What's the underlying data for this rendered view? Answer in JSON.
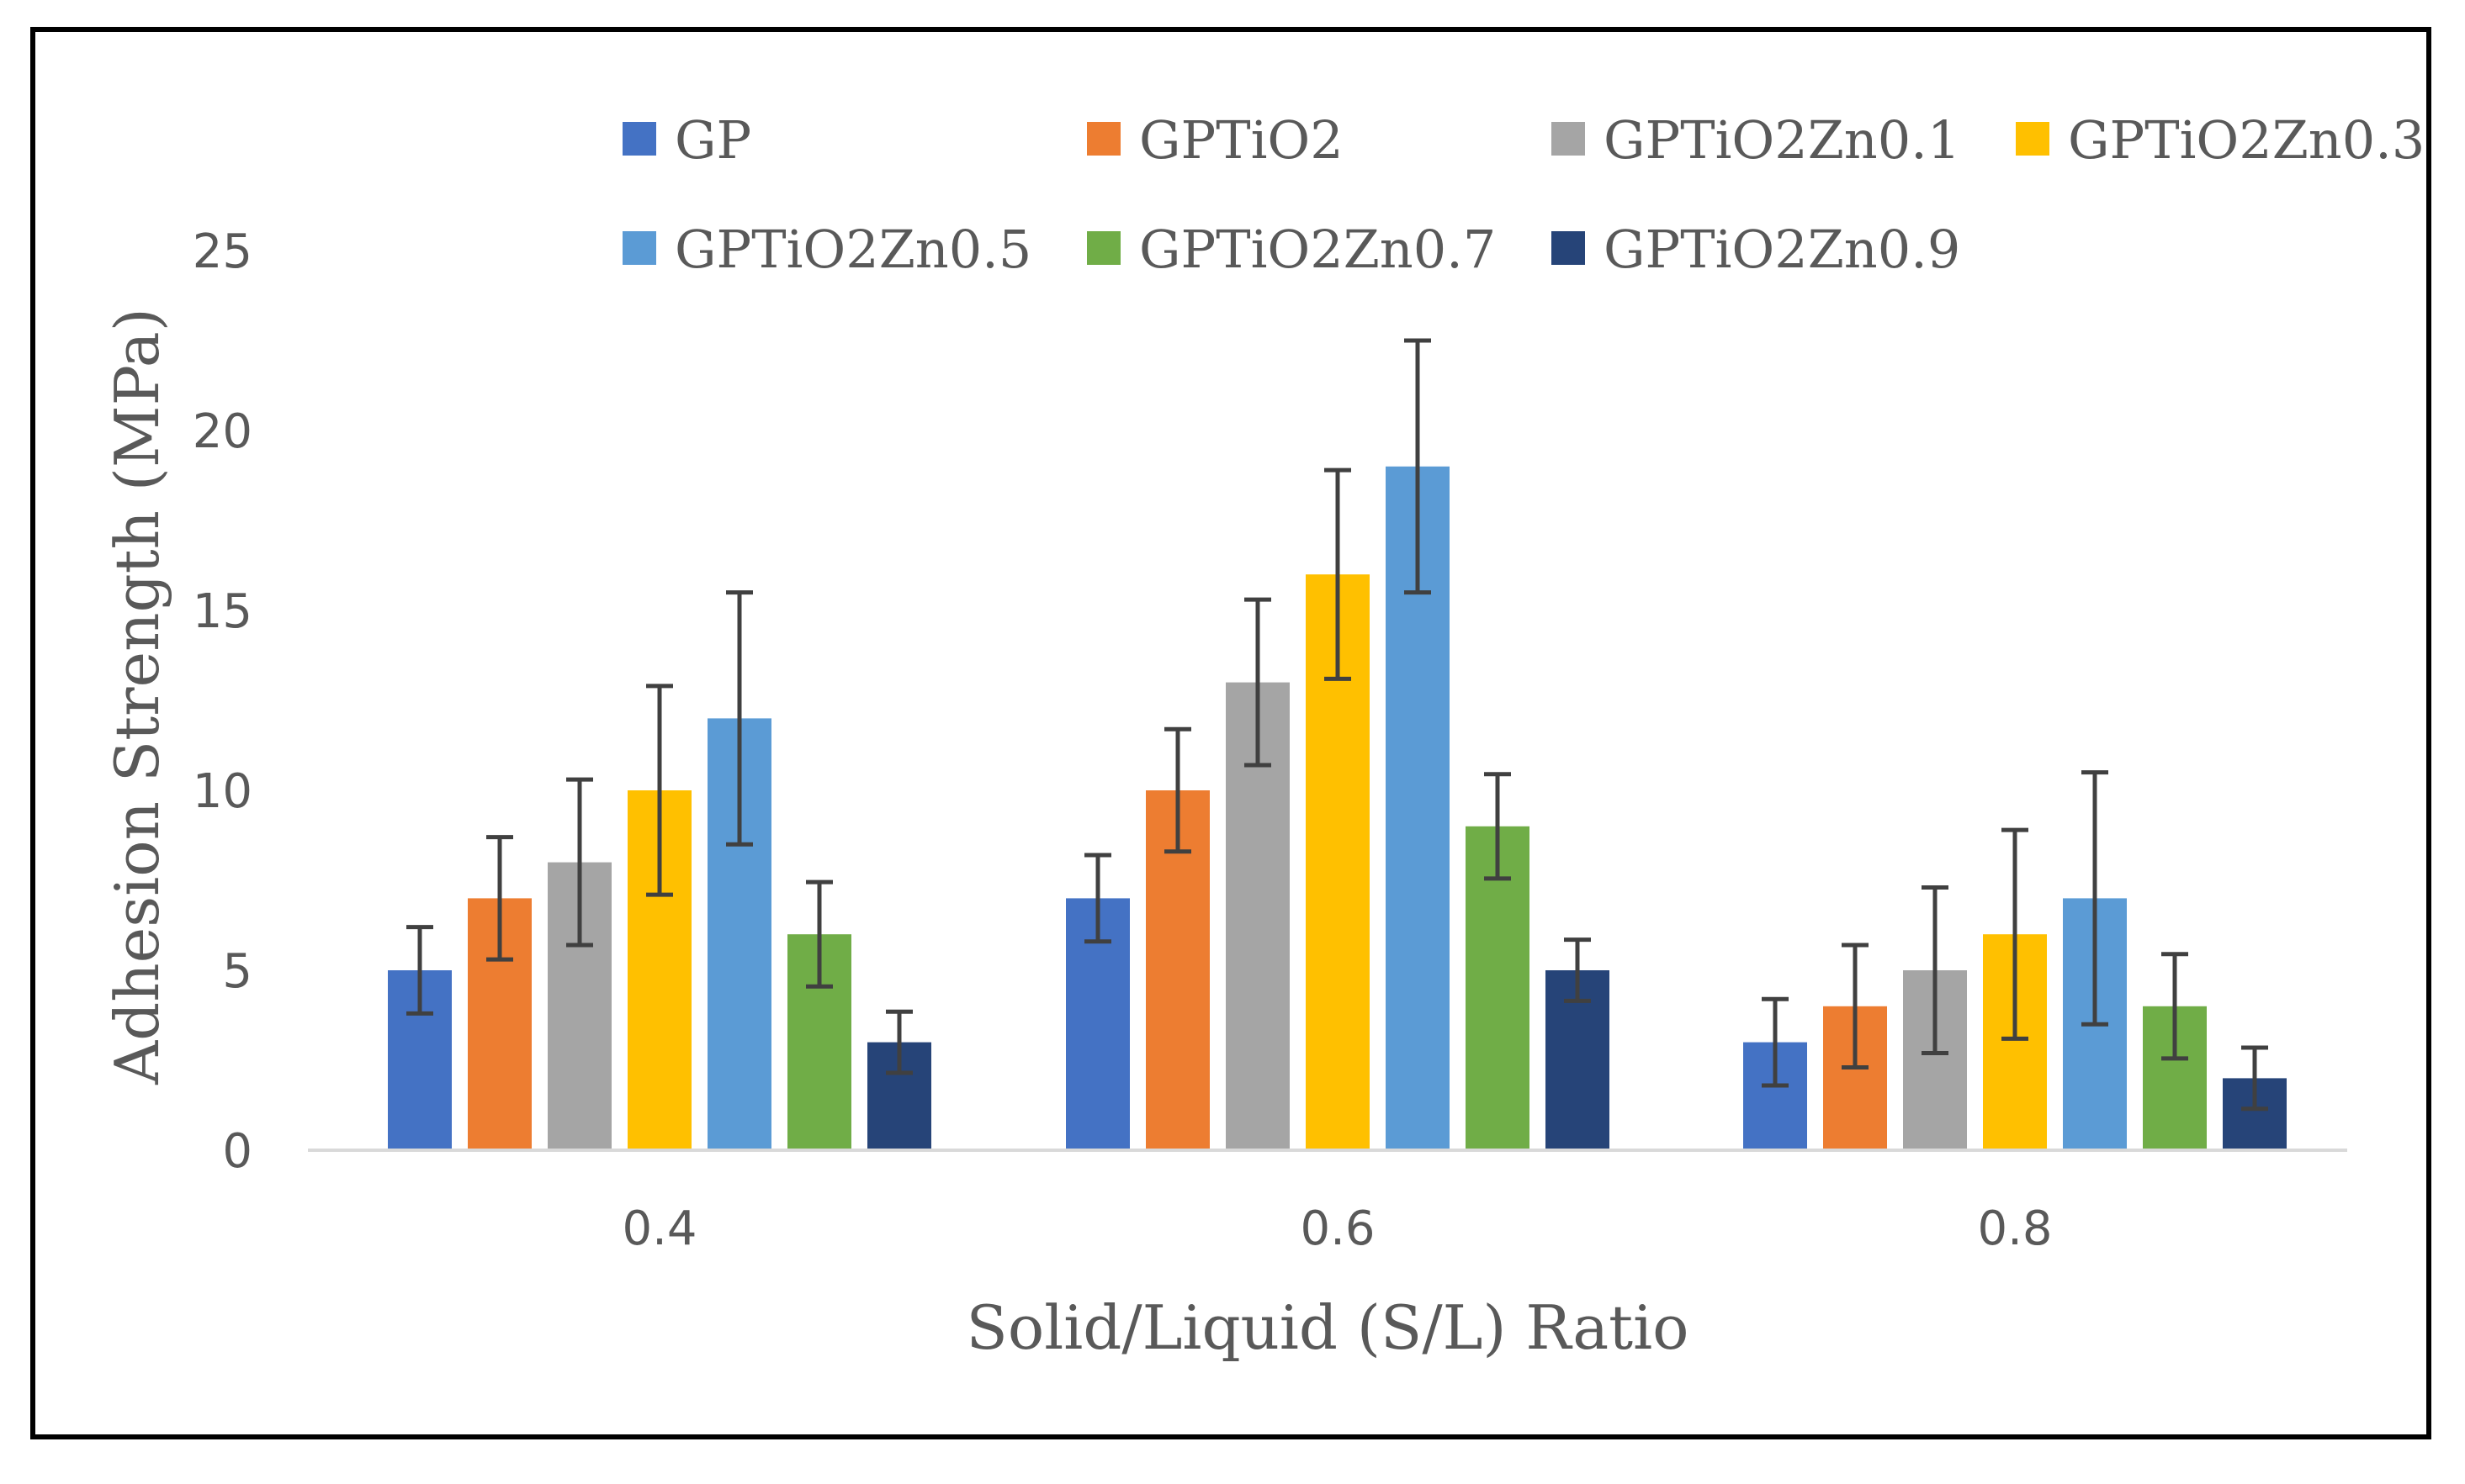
{
  "chart_data": {
    "type": "bar",
    "title": "",
    "xlabel": "Solid/Liquid (S/L) Ratio",
    "ylabel": "Adhesion Strength (MPa)",
    "categories": [
      "0.4",
      "0.6",
      "0.8"
    ],
    "ylim": [
      0,
      25
    ],
    "yticks": [
      0,
      5,
      10,
      15,
      20,
      25
    ],
    "ytick_labels": [
      "0",
      "5",
      "10",
      "15",
      "20",
      "25"
    ],
    "grid": false,
    "legend_position": "top",
    "series": [
      {
        "name": "GP",
        "color": "#4472C4",
        "values": [
          5,
          7,
          3
        ],
        "errors": [
          1.2,
          1.2,
          1.2
        ]
      },
      {
        "name": "GPTiO2",
        "color": "#ED7D31",
        "values": [
          7,
          10,
          4
        ],
        "errors": [
          1.7,
          1.7,
          1.7
        ]
      },
      {
        "name": "GPTiO2Zn0.1",
        "color": "#A5A5A5",
        "values": [
          8,
          13,
          5
        ],
        "errors": [
          2.3,
          2.3,
          2.3
        ]
      },
      {
        "name": "GPTiO2Zn0.3",
        "color": "#FFC000",
        "values": [
          10,
          16,
          6
        ],
        "errors": [
          2.9,
          2.9,
          2.9
        ]
      },
      {
        "name": "GPTiO2Zn0.5",
        "color": "#5B9BD5",
        "values": [
          12,
          19,
          7
        ],
        "errors": [
          3.5,
          3.5,
          3.5
        ]
      },
      {
        "name": "GPTiO2Zn0.7",
        "color": "#70AD47",
        "values": [
          6,
          9,
          4
        ],
        "errors": [
          1.45,
          1.45,
          1.45
        ]
      },
      {
        "name": "GPTiO2Zn0.9",
        "color": "#264478",
        "values": [
          3,
          5,
          2
        ],
        "errors": [
          0.85,
          0.85,
          0.85
        ]
      }
    ]
  }
}
